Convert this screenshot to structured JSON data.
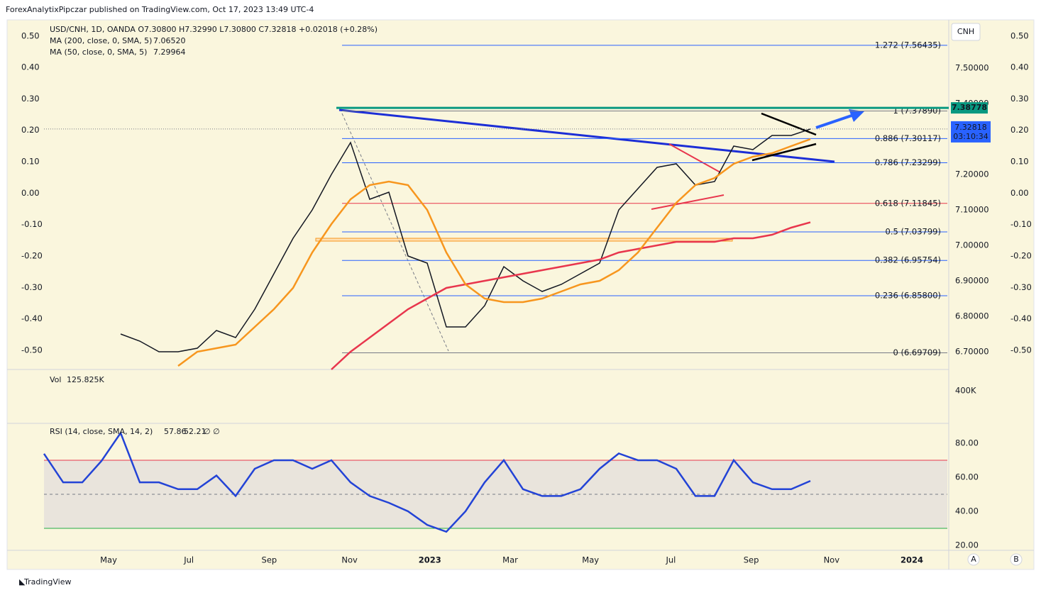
{
  "header": {
    "publisher": "ForexAnalytixPipczar published on TradingView.com, Oct 17, 2023 13:49 UTC-4"
  },
  "chart_data": [
    {
      "type": "line",
      "legend_title": "USD/CNH, 1D, OANDA O7.30800 H7.32990 L7.30800 C7.32818 +0.02018 (+0.28%)",
      "currency": "CNH",
      "xtick_labels": [
        "May",
        "Jul",
        "Sep",
        "Nov",
        "2023",
        "Mar",
        "May",
        "Jul",
        "Sep",
        "Nov",
        "2024"
      ],
      "series": [
        {
          "name": "USD/CNH",
          "color": "#131722",
          "values": [
            null,
            null,
            null,
            null,
            6.75,
            6.73,
            6.7,
            6.7,
            6.71,
            6.76,
            6.74,
            6.82,
            6.92,
            7.02,
            7.1,
            7.2,
            7.29,
            7.13,
            7.15,
            6.97,
            6.95,
            6.77,
            6.77,
            6.83,
            6.94,
            6.9,
            6.87,
            6.89,
            6.92,
            6.95,
            7.1,
            7.16,
            7.22,
            7.23,
            7.17,
            7.18,
            7.28,
            7.27,
            7.31,
            7.31,
            7.32818
          ]
        },
        {
          "name": "MA (200, close, 0, SMA, 5)",
          "legend_value": "7.06520",
          "color": "#e8364d",
          "values": [
            null,
            null,
            null,
            null,
            null,
            null,
            null,
            null,
            null,
            null,
            null,
            null,
            null,
            null,
            null,
            6.65,
            6.7,
            6.74,
            6.78,
            6.82,
            6.85,
            6.88,
            6.89,
            6.9,
            6.91,
            6.92,
            6.93,
            6.94,
            6.95,
            6.96,
            6.98,
            6.99,
            7.0,
            7.01,
            7.01,
            7.01,
            7.02,
            7.02,
            7.03,
            7.05,
            7.0652
          ]
        },
        {
          "name": "MA (50, close, 0, SMA, 5)",
          "legend_value": "7.29964",
          "color": "#f7961e",
          "values": [
            null,
            null,
            null,
            null,
            null,
            null,
            null,
            6.66,
            6.7,
            6.71,
            6.72,
            6.77,
            6.82,
            6.88,
            6.98,
            7.06,
            7.13,
            7.17,
            7.18,
            7.17,
            7.1,
            6.98,
            6.89,
            6.85,
            6.84,
            6.84,
            6.85,
            6.87,
            6.89,
            6.9,
            6.93,
            6.98,
            7.05,
            7.12,
            7.17,
            7.19,
            7.23,
            7.25,
            7.26,
            7.28,
            7.29964
          ]
        }
      ],
      "ylim": [
        6.652,
        7.632
      ],
      "yticks": [
        {
          "value": 7.5,
          "label": "7.50000"
        },
        {
          "value": 7.4,
          "label": "7.40000"
        },
        {
          "value": 7.2,
          "label": "7.20000"
        },
        {
          "value": 7.1,
          "label": "7.10000"
        },
        {
          "value": 7.0,
          "label": "7.00000"
        },
        {
          "value": 6.9,
          "label": "6.90000"
        },
        {
          "value": 6.8,
          "label": "6.80000"
        },
        {
          "value": 6.7,
          "label": "6.70000"
        }
      ],
      "left_ylim": [
        -0.559,
        0.547
      ],
      "left_yticks": [
        {
          "value": 0.5,
          "label": "0.50"
        },
        {
          "value": 0.4,
          "label": "0.40"
        },
        {
          "value": 0.3,
          "label": "0.30"
        },
        {
          "value": 0.2,
          "label": "0.20"
        },
        {
          "value": 0.1,
          "label": "0.10"
        },
        {
          "value": 0,
          "label": "0.00"
        },
        {
          "value": -0.1,
          "label": "-0.10"
        },
        {
          "value": -0.2,
          "label": "-0.20"
        },
        {
          "value": -0.3,
          "label": "-0.30"
        },
        {
          "value": -0.4,
          "label": "-0.40"
        },
        {
          "value": -0.5,
          "label": "-0.50"
        }
      ],
      "fib_levels": [
        {
          "value": 7.56435,
          "label": "1.272 (7.56435)",
          "color": "#2962ff"
        },
        {
          "value": 7.3789,
          "label": "1 (7.37890)",
          "color": "#787b86"
        },
        {
          "value": 7.30117,
          "label": "0.886 (7.30117)",
          "color": "#2962ff"
        },
        {
          "value": 7.23299,
          "label": "0.786 (7.23299)",
          "color": "#2962ff"
        },
        {
          "value": 7.11845,
          "label": "0.618 (7.11845)",
          "color": "#e8364d"
        },
        {
          "value": 7.03799,
          "label": "0.5 (7.03799)",
          "color": "#2962ff"
        },
        {
          "value": 6.95754,
          "label": "0.382 (6.95754)",
          "color": "#2962ff"
        },
        {
          "value": 6.858,
          "label": "0.236 (6.85800)",
          "color": "#2962ff"
        },
        {
          "value": 6.69709,
          "label": "0 (6.69709)",
          "color": "#787b86"
        }
      ],
      "resistance": {
        "value": 7.38778,
        "label": "7.38778",
        "color": "#089981"
      },
      "last_price": {
        "value": 7.32818,
        "label": "7.32818",
        "countdown": "03:10:34",
        "color": "#2962ff"
      }
    },
    {
      "type": "volume",
      "title": "Vol",
      "value_label": "125.825K",
      "ylim": [
        0,
        648000
      ],
      "yticks": [
        {
          "value": 400000,
          "label": "400K"
        }
      ]
    },
    {
      "type": "line",
      "title": "RSI (14, close, SMA, 14, 2)",
      "legend_values": [
        "57.86",
        "52.21",
        "∅ ∅"
      ],
      "series": [
        {
          "name": "RSI",
          "color": "#2343d6",
          "values": [
            73.8,
            57,
            57,
            69.6,
            86,
            57,
            57,
            53,
            53,
            61,
            49,
            65,
            70,
            70,
            65,
            70,
            57,
            49,
            45,
            40,
            32,
            28,
            40,
            57,
            70,
            53,
            49,
            49,
            53,
            65,
            74,
            70,
            70,
            65,
            49,
            49,
            70,
            57,
            53,
            53,
            57.86
          ]
        }
      ],
      "bands": {
        "upper": 70,
        "middle": 50,
        "lower": 30
      },
      "ylim": [
        17.5,
        90.4
      ],
      "yticks": [
        {
          "value": 80,
          "label": "80.00"
        },
        {
          "value": 60,
          "label": "60.00"
        },
        {
          "value": 40,
          "label": "40.00"
        },
        {
          "value": 20,
          "label": "20.00"
        }
      ]
    }
  ],
  "footer": {
    "brand": "TradingView",
    "buttons": [
      "A",
      "B"
    ]
  }
}
